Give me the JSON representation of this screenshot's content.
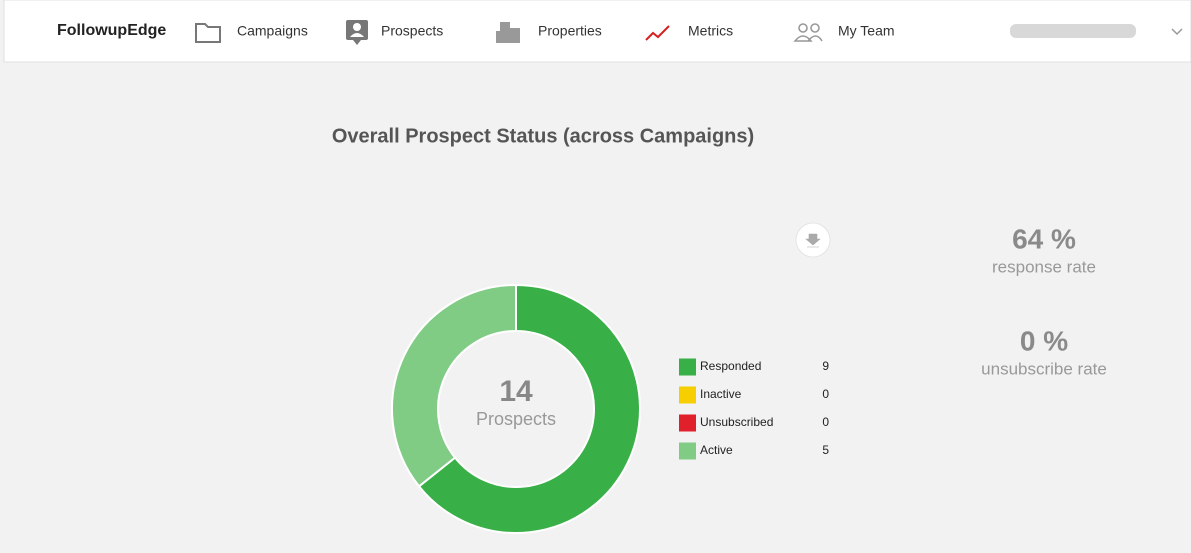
{
  "nav": {
    "brand": "FollowupEdge",
    "items": [
      "Campaigns",
      "Prospects",
      "Properties",
      "Metrics",
      "My Team"
    ]
  },
  "chart_data": {
    "type": "donut",
    "title": "Overall Prospect Status (across Campaigns)",
    "center_value": 14,
    "center_label": "Prospects",
    "categories": [
      "Responded",
      "Inactive",
      "Unsubscribed",
      "Active"
    ],
    "values": [
      9,
      0,
      0,
      5
    ],
    "colors": [
      "#39b047",
      "#f7cf00",
      "#e0202a",
      "#80cc85"
    ]
  },
  "stats": [
    {
      "value": "64 %",
      "caption": "response rate"
    },
    {
      "value": "0 %",
      "caption": "unsubscribe rate"
    }
  ]
}
